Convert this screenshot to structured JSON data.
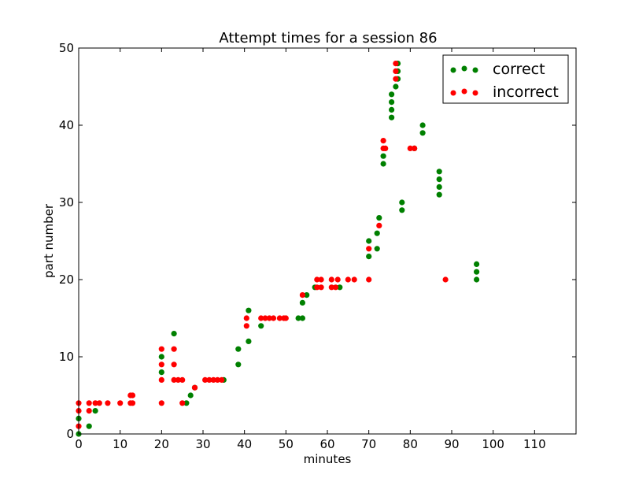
{
  "chart_data": {
    "type": "scatter",
    "title": "Attempt times for a session 86",
    "xlabel": "minutes",
    "ylabel": "part number",
    "xlim": [
      0,
      120
    ],
    "ylim": [
      0,
      50
    ],
    "xticks": [
      0,
      10,
      20,
      30,
      40,
      50,
      60,
      70,
      80,
      90,
      100,
      110
    ],
    "yticks": [
      0,
      10,
      20,
      30,
      40,
      50
    ],
    "grid": false,
    "legend_position": "top-right",
    "series": [
      {
        "name": "correct",
        "color": "#008000",
        "points": [
          [
            0,
            0
          ],
          [
            0,
            2
          ],
          [
            2.5,
            1
          ],
          [
            4,
            3
          ],
          [
            20,
            8
          ],
          [
            20,
            10
          ],
          [
            23,
            13
          ],
          [
            26,
            4
          ],
          [
            27,
            5
          ],
          [
            28,
            6
          ],
          [
            35,
            7
          ],
          [
            38.5,
            9
          ],
          [
            38.5,
            11
          ],
          [
            41,
            12
          ],
          [
            41,
            16
          ],
          [
            44,
            14
          ],
          [
            53,
            15
          ],
          [
            54,
            15
          ],
          [
            54,
            17
          ],
          [
            55,
            18
          ],
          [
            57,
            19
          ],
          [
            63,
            19
          ],
          [
            70,
            23
          ],
          [
            70,
            25
          ],
          [
            72,
            24
          ],
          [
            72,
            26
          ],
          [
            72.5,
            28
          ],
          [
            73.5,
            35
          ],
          [
            73.5,
            36
          ],
          [
            75.5,
            41
          ],
          [
            75.5,
            42
          ],
          [
            75.5,
            43
          ],
          [
            75.5,
            44
          ],
          [
            76.5,
            45
          ],
          [
            77,
            46
          ],
          [
            77,
            47
          ],
          [
            77,
            48
          ],
          [
            78,
            29
          ],
          [
            78,
            30
          ],
          [
            81,
            37
          ],
          [
            83,
            39
          ],
          [
            83,
            40
          ],
          [
            87,
            31
          ],
          [
            87,
            32
          ],
          [
            87,
            33
          ],
          [
            87,
            34
          ],
          [
            96,
            20
          ],
          [
            96,
            21
          ],
          [
            96,
            22
          ]
        ]
      },
      {
        "name": "incorrect",
        "color": "#ff0000",
        "points": [
          [
            0,
            1
          ],
          [
            0,
            3
          ],
          [
            0,
            4
          ],
          [
            2.5,
            3
          ],
          [
            2.5,
            4
          ],
          [
            4,
            4
          ],
          [
            5,
            4
          ],
          [
            7,
            4
          ],
          [
            10,
            4
          ],
          [
            12.5,
            4
          ],
          [
            13,
            4
          ],
          [
            12.5,
            5
          ],
          [
            13,
            5
          ],
          [
            20,
            4
          ],
          [
            20,
            7
          ],
          [
            20,
            9
          ],
          [
            20,
            11
          ],
          [
            23,
            7
          ],
          [
            23,
            9
          ],
          [
            23,
            11
          ],
          [
            24,
            7
          ],
          [
            25,
            7
          ],
          [
            25,
            4
          ],
          [
            28,
            6
          ],
          [
            30.5,
            7
          ],
          [
            31.5,
            7
          ],
          [
            32.5,
            7
          ],
          [
            33.5,
            7
          ],
          [
            34.5,
            7
          ],
          [
            40.5,
            14
          ],
          [
            40.5,
            15
          ],
          [
            44,
            15
          ],
          [
            45,
            15
          ],
          [
            46,
            15
          ],
          [
            47,
            15
          ],
          [
            48.5,
            15
          ],
          [
            49.5,
            15
          ],
          [
            50,
            15
          ],
          [
            54,
            18
          ],
          [
            57.5,
            19
          ],
          [
            57.5,
            20
          ],
          [
            58.5,
            19
          ],
          [
            58.5,
            20
          ],
          [
            61,
            19
          ],
          [
            61,
            20
          ],
          [
            62,
            19
          ],
          [
            62.5,
            20
          ],
          [
            65,
            20
          ],
          [
            66.5,
            20
          ],
          [
            70,
            20
          ],
          [
            70,
            24
          ],
          [
            72.5,
            27
          ],
          [
            73.5,
            37
          ],
          [
            73.5,
            38
          ],
          [
            74,
            37
          ],
          [
            76.5,
            46
          ],
          [
            76.5,
            47
          ],
          [
            76.5,
            48
          ],
          [
            80,
            37
          ],
          [
            81,
            37
          ],
          [
            88.5,
            20
          ]
        ]
      }
    ]
  }
}
